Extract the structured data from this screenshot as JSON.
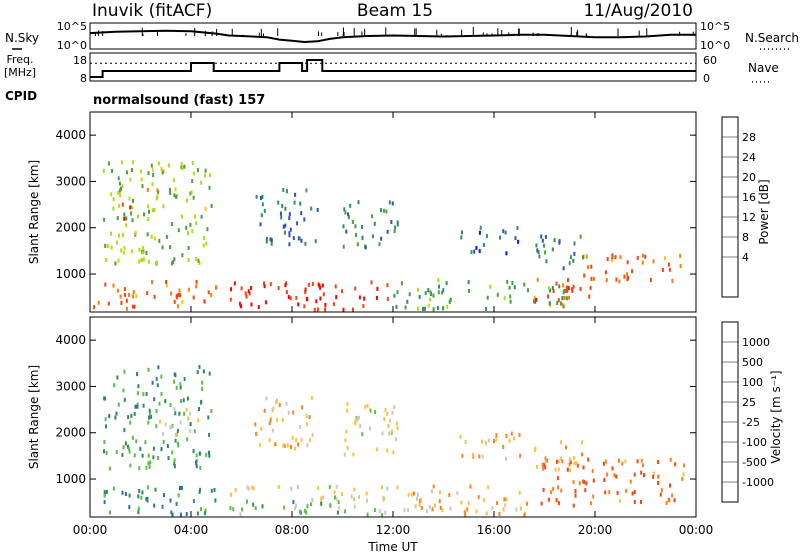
{
  "header": {
    "station": "Inuvik (fitACF)",
    "beam": "Beam 15",
    "date": "11/Aug/2010"
  },
  "chart_data": [
    {
      "type": "line",
      "panel": "noise",
      "left_label": "N.Sky",
      "right_label": "N.Search",
      "left_ticks": [
        "10^5",
        "10^0"
      ],
      "right_ticks": [
        "10^5",
        "10^0"
      ],
      "series": [
        {
          "name": "N.Sky",
          "style": "solid",
          "x": [
            0,
            1,
            2,
            3,
            4,
            5,
            5.5,
            6,
            7,
            7.5,
            8,
            8.5,
            9,
            9.5,
            10,
            11,
            12,
            13,
            14,
            15,
            16,
            17,
            18,
            19,
            20,
            21,
            22,
            23,
            24
          ],
          "y": [
            0.62,
            0.68,
            0.7,
            0.72,
            0.7,
            0.6,
            0.52,
            0.5,
            0.45,
            0.35,
            0.3,
            0.25,
            0.28,
            0.38,
            0.45,
            0.5,
            0.52,
            0.5,
            0.48,
            0.5,
            0.52,
            0.55,
            0.55,
            0.5,
            0.45,
            0.45,
            0.48,
            0.55,
            0.55
          ]
        }
      ]
    },
    {
      "type": "line",
      "panel": "frequency",
      "left_label": "Freq.",
      "left_unit": "[MHz]",
      "right_label": "Nave",
      "left_ticks": [
        "18",
        "8"
      ],
      "right_ticks": [
        "60",
        "0"
      ],
      "series": [
        {
          "name": "Freq.",
          "style": "solid",
          "x": [
            0,
            0.5,
            0.5,
            1.5,
            1.5,
            4,
            4,
            4.9,
            4.9,
            7.5,
            7.5,
            8.4,
            8.4,
            8.6,
            8.6,
            9.2,
            9.2,
            11.2,
            11.2,
            12.3,
            12.3,
            24
          ],
          "y": [
            8,
            8,
            11,
            11,
            11,
            11,
            15,
            15,
            11,
            11,
            15,
            15,
            11,
            11,
            16.5,
            16.5,
            11,
            11,
            11,
            11,
            11,
            11
          ]
        },
        {
          "name": "Nave",
          "style": "dotted",
          "y_const": 38
        }
      ]
    },
    {
      "type": "heatmap",
      "panel": "power",
      "cpid_label": "CPID",
      "cpid_text": "normalsound (fast) 157",
      "title": "",
      "xlabel": "",
      "ylabel": "Slant Range [km]",
      "x_ticks": [
        "00:00",
        "04:00",
        "08:00",
        "12:00",
        "16:00",
        "20:00",
        "00:00"
      ],
      "y_ticks": [
        1000,
        2000,
        3000,
        4000
      ],
      "xlim": [
        0,
        24
      ],
      "ylim": [
        180,
        4500
      ],
      "colorbar": {
        "label": "Power [dB]",
        "ticks": [
          "28",
          "24",
          "20",
          "16",
          "12",
          "8",
          "4"
        ],
        "colors": [
          "#ff0000",
          "#ff4010",
          "#ff7d00",
          "#ffc000",
          "#a8e010",
          "#4aa040",
          "#2e9060",
          "#3050c0",
          "#0018ff"
        ]
      },
      "regions": [
        {
          "x": [
            0.1,
            5.0
          ],
          "y": [
            200,
            820
          ],
          "level": 0.8
        },
        {
          "x": [
            5.5,
            11.8
          ],
          "y": [
            200,
            800
          ],
          "level": 0.95
        },
        {
          "x": [
            12,
            19
          ],
          "y": [
            200,
            850
          ],
          "level": 0.35
        },
        {
          "x": [
            17.5,
            20
          ],
          "y": [
            300,
            900
          ],
          "level": 0.85
        },
        {
          "x": [
            19.5,
            23.5
          ],
          "y": [
            800,
            1400
          ],
          "level": 0.8
        },
        {
          "x": [
            0.5,
            4.8
          ],
          "y": [
            1200,
            3400
          ],
          "level": 0.45
        },
        {
          "x": [
            1.2,
            1.7
          ],
          "y": [
            2100,
            2600
          ],
          "level": 0.9
        },
        {
          "x": [
            2.2,
            2.7
          ],
          "y": [
            2600,
            3300
          ],
          "level": 0.6
        },
        {
          "x": [
            6.5,
            9
          ],
          "y": [
            1600,
            2800
          ],
          "level": 0.2
        },
        {
          "x": [
            10,
            12.3
          ],
          "y": [
            1500,
            2600
          ],
          "level": 0.25
        },
        {
          "x": [
            14.5,
            17
          ],
          "y": [
            1400,
            2000
          ],
          "level": 0.15
        },
        {
          "x": [
            17.5,
            19.5
          ],
          "y": [
            1100,
            1800
          ],
          "level": 0.2
        }
      ]
    },
    {
      "type": "heatmap",
      "panel": "velocity",
      "title": "",
      "xlabel": "Time UT",
      "ylabel": "Slant Range [km]",
      "x_ticks": [
        "00:00",
        "04:00",
        "08:00",
        "12:00",
        "16:00",
        "20:00",
        "00:00"
      ],
      "y_ticks": [
        1000,
        2000,
        3000,
        4000
      ],
      "xlim": [
        0,
        24
      ],
      "ylim": [
        180,
        4500
      ],
      "colorbar": {
        "label": "Velocity [m s⁻¹]",
        "ticks": [
          "1000",
          "500",
          "100",
          "25",
          "-25",
          "-100",
          "-500",
          "-1000"
        ],
        "colors": [
          "#1030c0",
          "#2a70a0",
          "#2e8a60",
          "#58c040",
          "#c8c8c8",
          "#ffc040",
          "#ff8020",
          "#ff4010",
          "#ff0000"
        ]
      },
      "regions": [
        {
          "x": [
            0.1,
            5.0
          ],
          "y": [
            200,
            820
          ],
          "level": 0.75
        },
        {
          "x": [
            5.5,
            11.8
          ],
          "y": [
            500,
            820
          ],
          "level": 0.45
        },
        {
          "x": [
            5.5,
            11.8
          ],
          "y": [
            200,
            500
          ],
          "level": 0.65
        },
        {
          "x": [
            12,
            17.5
          ],
          "y": [
            200,
            850
          ],
          "level": 0.35
        },
        {
          "x": [
            17.5,
            23.5
          ],
          "y": [
            400,
            1400
          ],
          "level": 0.2
        },
        {
          "x": [
            0.5,
            4.8
          ],
          "y": [
            1200,
            3400
          ],
          "level": 0.7
        },
        {
          "x": [
            2.5,
            4.5
          ],
          "y": [
            1900,
            2500
          ],
          "level": 0.45
        },
        {
          "x": [
            6.5,
            9
          ],
          "y": [
            1600,
            2800
          ],
          "level": 0.35
        },
        {
          "x": [
            10,
            12.3
          ],
          "y": [
            1500,
            2600
          ],
          "level": 0.45
        },
        {
          "x": [
            14.5,
            17
          ],
          "y": [
            1400,
            2000
          ],
          "level": 0.35
        },
        {
          "x": [
            17.5,
            19.5
          ],
          "y": [
            1100,
            1800
          ],
          "level": 0.35
        }
      ]
    }
  ]
}
